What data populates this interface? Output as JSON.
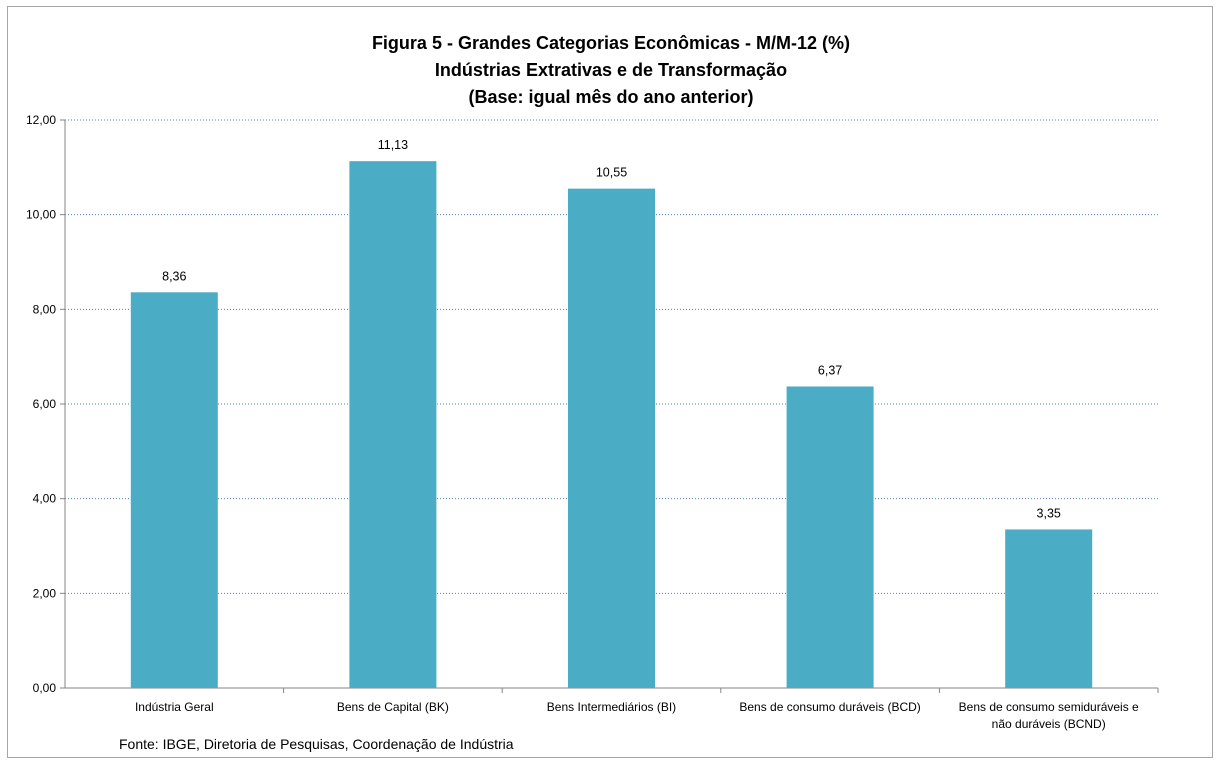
{
  "chart_data": {
    "type": "bar",
    "title_lines": [
      "Figura 5 - Grandes Categorias Econômicas - M/M-12 (%)",
      "Indústrias Extrativas e de Transformação",
      "(Base: igual mês do ano anterior)"
    ],
    "categories": [
      [
        "Indústria Geral"
      ],
      [
        "Bens de Capital (BK)"
      ],
      [
        "Bens Intermediários (BI)"
      ],
      [
        "Bens de consumo duráveis (BCD)"
      ],
      [
        "Bens de consumo semiduráveis e",
        "não duráveis (BCND)"
      ]
    ],
    "values": [
      8.36,
      11.13,
      10.55,
      6.37,
      3.35
    ],
    "value_labels": [
      "8,36",
      "11,13",
      "10,55",
      "6,37",
      "3,35"
    ],
    "yticks": [
      0,
      2,
      4,
      6,
      8,
      10,
      12
    ],
    "ytick_labels": [
      "0,00",
      "2,00",
      "4,00",
      "6,00",
      "8,00",
      "10,00",
      "12,00"
    ],
    "ylim": [
      0,
      12
    ],
    "grid": true,
    "bar_color": "#4bacc6",
    "grid_color": "#4f81bd"
  },
  "source_note": "Fonte: IBGE, Diretoria de Pesquisas, Coordenação de Indústria"
}
